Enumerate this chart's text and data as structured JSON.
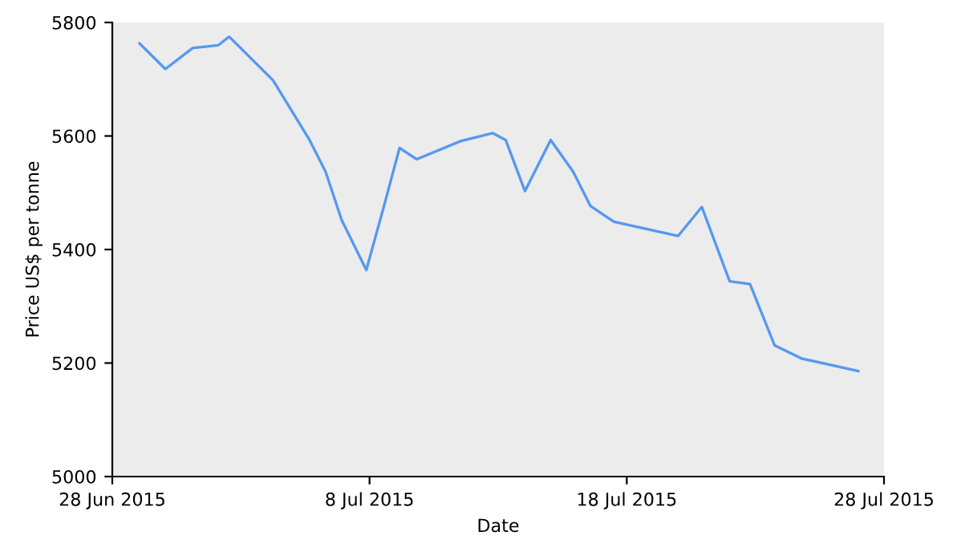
{
  "chart_data": {
    "type": "line",
    "xlabel": "Date",
    "ylabel": "Price US$ per tonne",
    "x": [
      "2015-06-29T01:30",
      "2015-06-30T01:30",
      "2015-07-01T03:00",
      "2015-07-02T03:00",
      "2015-07-02T13:00",
      "2015-07-04T06:00",
      "2015-07-05T16:00",
      "2015-07-06T07:00",
      "2015-07-06T22:00",
      "2015-07-07T21:00",
      "2015-07-08T14:00",
      "2015-07-09T04:00",
      "2015-07-09T20:00",
      "2015-07-11T13:00",
      "2015-07-12T19:00",
      "2015-07-13T07:00",
      "2015-07-14T01:00",
      "2015-07-15T01:00",
      "2015-07-15T22:00",
      "2015-07-16T14:00",
      "2015-07-17T12:00",
      "2015-07-20T00:00",
      "2015-07-20T22:00",
      "2015-07-22T00:00",
      "2015-07-22T19:00",
      "2015-07-23T18:00",
      "2015-07-24T19:00",
      "2015-07-27T00:00"
    ],
    "series": [
      {
        "color": "#5599ee",
        "values": [
          5763,
          5718,
          5755,
          5760,
          5775,
          5698,
          5593,
          5537,
          5452,
          5364,
          5480,
          5579,
          5559,
          5591,
          5605,
          5593,
          5503,
          5593,
          5537,
          5477,
          5449,
          5424,
          5475,
          5344,
          5339,
          5231,
          5208,
          5186
        ]
      }
    ],
    "xlim": [
      "2015-06-28",
      "2015-07-28"
    ],
    "xticks": [
      {
        "value": "2015-06-28",
        "label": "28 Jun 2015"
      },
      {
        "value": "2015-07-08",
        "label": "8 Jul 2015"
      },
      {
        "value": "2015-07-18",
        "label": "18 Jul 2015"
      },
      {
        "value": "2015-07-28",
        "label": "28 Jul 2015"
      }
    ],
    "ylim": [
      5000,
      5800
    ],
    "yticks": [
      5000,
      5200,
      5400,
      5600,
      5800
    ],
    "grid": false,
    "legend": false,
    "marker": "none",
    "line_style": "solid"
  }
}
